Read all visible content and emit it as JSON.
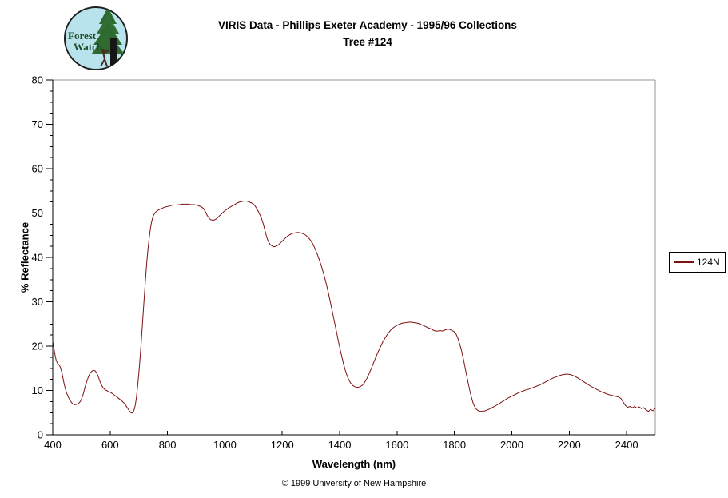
{
  "header": {
    "title_line1": "VIRIS Data - Phillips Exeter Academy - 1995/96 Collections",
    "title_line2": "Tree #124"
  },
  "logo": {
    "text_line1": "Forest",
    "text_line2": "Watch",
    "colors": {
      "circle_fill": "#b9e3ec",
      "circle_stroke": "#1f1f1f",
      "tree_green": "#2d6a30",
      "trunk": "#161616",
      "text_green": "#1d4c2a"
    }
  },
  "footer": {
    "copyright": "© 1999 University of New Hampshire"
  },
  "chart_data": {
    "type": "line",
    "title": "VIRIS Data - Phillips Exeter Academy - 1995/96 Collections",
    "subtitle": "Tree #124",
    "xlabel": "Wavelength (nm)",
    "ylabel": "% Reflectance",
    "xlim": [
      400,
      2500
    ],
    "ylim": [
      0,
      80
    ],
    "x_ticks": [
      400,
      600,
      800,
      1000,
      1200,
      1400,
      1600,
      1800,
      2000,
      2200,
      2400
    ],
    "y_ticks": [
      0,
      10,
      20,
      30,
      40,
      50,
      60,
      70,
      80
    ],
    "y_minor_tick_step": 2.5,
    "grid": false,
    "legend_position": "right",
    "axis_color": "#000000",
    "frame_color": "#949494",
    "series": [
      {
        "name": "124N",
        "color": "#7e1112",
        "points": [
          [
            400,
            21.2
          ],
          [
            404,
            19.6
          ],
          [
            408,
            18.0
          ],
          [
            412,
            16.8
          ],
          [
            416,
            16.2
          ],
          [
            420,
            15.9
          ],
          [
            424,
            15.6
          ],
          [
            428,
            15.0
          ],
          [
            432,
            14.0
          ],
          [
            436,
            12.7
          ],
          [
            440,
            11.4
          ],
          [
            444,
            10.4
          ],
          [
            448,
            9.5
          ],
          [
            452,
            8.9
          ],
          [
            456,
            8.3
          ],
          [
            460,
            7.8
          ],
          [
            464,
            7.4
          ],
          [
            468,
            7.1
          ],
          [
            472,
            6.9
          ],
          [
            476,
            6.8
          ],
          [
            480,
            6.8
          ],
          [
            484,
            6.9
          ],
          [
            488,
            7.0
          ],
          [
            492,
            7.2
          ],
          [
            496,
            7.5
          ],
          [
            500,
            8.0
          ],
          [
            504,
            8.7
          ],
          [
            508,
            9.6
          ],
          [
            512,
            10.6
          ],
          [
            516,
            11.5
          ],
          [
            520,
            12.3
          ],
          [
            524,
            13.0
          ],
          [
            528,
            13.6
          ],
          [
            532,
            14.0
          ],
          [
            536,
            14.3
          ],
          [
            540,
            14.5
          ],
          [
            544,
            14.5
          ],
          [
            548,
            14.4
          ],
          [
            552,
            14.1
          ],
          [
            556,
            13.6
          ],
          [
            560,
            12.9
          ],
          [
            564,
            12.1
          ],
          [
            568,
            11.5
          ],
          [
            572,
            11.0
          ],
          [
            576,
            10.6
          ],
          [
            580,
            10.3
          ],
          [
            584,
            10.1
          ],
          [
            588,
            10.0
          ],
          [
            592,
            9.8
          ],
          [
            596,
            9.7
          ],
          [
            600,
            9.6
          ],
          [
            608,
            9.3
          ],
          [
            616,
            8.9
          ],
          [
            624,
            8.5
          ],
          [
            632,
            8.1
          ],
          [
            640,
            7.7
          ],
          [
            648,
            7.2
          ],
          [
            654,
            6.7
          ],
          [
            660,
            6.1
          ],
          [
            666,
            5.5
          ],
          [
            672,
            5.0
          ],
          [
            676,
            4.9
          ],
          [
            680,
            5.1
          ],
          [
            684,
            5.7
          ],
          [
            688,
            6.8
          ],
          [
            692,
            8.6
          ],
          [
            696,
            11.0
          ],
          [
            700,
            13.8
          ],
          [
            704,
            17.0
          ],
          [
            708,
            20.5
          ],
          [
            712,
            24.3
          ],
          [
            716,
            28.2
          ],
          [
            720,
            32.0
          ],
          [
            724,
            35.7
          ],
          [
            728,
            39.0
          ],
          [
            732,
            41.9
          ],
          [
            736,
            44.3
          ],
          [
            740,
            46.3
          ],
          [
            744,
            47.8
          ],
          [
            748,
            48.9
          ],
          [
            752,
            49.6
          ],
          [
            756,
            50.0
          ],
          [
            760,
            50.3
          ],
          [
            766,
            50.6
          ],
          [
            772,
            50.8
          ],
          [
            778,
            51.0
          ],
          [
            786,
            51.2
          ],
          [
            794,
            51.4
          ],
          [
            802,
            51.5
          ],
          [
            812,
            51.7
          ],
          [
            822,
            51.8
          ],
          [
            832,
            51.8
          ],
          [
            842,
            51.9
          ],
          [
            852,
            52.0
          ],
          [
            862,
            52.0
          ],
          [
            872,
            52.0
          ],
          [
            882,
            51.9
          ],
          [
            892,
            51.9
          ],
          [
            902,
            51.8
          ],
          [
            910,
            51.6
          ],
          [
            918,
            51.4
          ],
          [
            926,
            51.0
          ],
          [
            932,
            50.3
          ],
          [
            938,
            49.5
          ],
          [
            944,
            48.9
          ],
          [
            950,
            48.5
          ],
          [
            956,
            48.4
          ],
          [
            962,
            48.4
          ],
          [
            968,
            48.6
          ],
          [
            974,
            48.9
          ],
          [
            980,
            49.3
          ],
          [
            988,
            49.8
          ],
          [
            996,
            50.3
          ],
          [
            1004,
            50.7
          ],
          [
            1012,
            51.1
          ],
          [
            1020,
            51.4
          ],
          [
            1028,
            51.7
          ],
          [
            1036,
            52.0
          ],
          [
            1044,
            52.3
          ],
          [
            1052,
            52.5
          ],
          [
            1060,
            52.6
          ],
          [
            1068,
            52.7
          ],
          [
            1076,
            52.7
          ],
          [
            1084,
            52.5
          ],
          [
            1092,
            52.3
          ],
          [
            1098,
            52.1
          ],
          [
            1104,
            51.7
          ],
          [
            1110,
            51.1
          ],
          [
            1116,
            50.4
          ],
          [
            1122,
            49.6
          ],
          [
            1128,
            48.7
          ],
          [
            1134,
            47.5
          ],
          [
            1140,
            46.0
          ],
          [
            1146,
            44.5
          ],
          [
            1152,
            43.5
          ],
          [
            1158,
            42.9
          ],
          [
            1164,
            42.6
          ],
          [
            1170,
            42.4
          ],
          [
            1178,
            42.5
          ],
          [
            1186,
            42.8
          ],
          [
            1194,
            43.3
          ],
          [
            1202,
            43.8
          ],
          [
            1210,
            44.3
          ],
          [
            1218,
            44.8
          ],
          [
            1226,
            45.1
          ],
          [
            1234,
            45.4
          ],
          [
            1242,
            45.5
          ],
          [
            1250,
            45.6
          ],
          [
            1258,
            45.6
          ],
          [
            1266,
            45.5
          ],
          [
            1274,
            45.3
          ],
          [
            1282,
            45.0
          ],
          [
            1290,
            44.5
          ],
          [
            1298,
            43.9
          ],
          [
            1306,
            43.1
          ],
          [
            1314,
            42.0
          ],
          [
            1322,
            40.7
          ],
          [
            1330,
            39.3
          ],
          [
            1338,
            37.7
          ],
          [
            1346,
            35.9
          ],
          [
            1354,
            33.9
          ],
          [
            1360,
            32.2
          ],
          [
            1366,
            30.4
          ],
          [
            1372,
            28.6
          ],
          [
            1378,
            26.7
          ],
          [
            1384,
            24.8
          ],
          [
            1390,
            22.9
          ],
          [
            1396,
            21.0
          ],
          [
            1402,
            19.2
          ],
          [
            1408,
            17.5
          ],
          [
            1414,
            15.9
          ],
          [
            1420,
            14.5
          ],
          [
            1426,
            13.3
          ],
          [
            1432,
            12.4
          ],
          [
            1438,
            11.7
          ],
          [
            1446,
            11.1
          ],
          [
            1454,
            10.8
          ],
          [
            1462,
            10.7
          ],
          [
            1470,
            10.8
          ],
          [
            1478,
            11.1
          ],
          [
            1486,
            11.7
          ],
          [
            1494,
            12.6
          ],
          [
            1502,
            13.7
          ],
          [
            1510,
            14.9
          ],
          [
            1518,
            16.2
          ],
          [
            1526,
            17.5
          ],
          [
            1534,
            18.7
          ],
          [
            1542,
            19.8
          ],
          [
            1550,
            20.9
          ],
          [
            1558,
            21.8
          ],
          [
            1566,
            22.6
          ],
          [
            1574,
            23.3
          ],
          [
            1582,
            23.9
          ],
          [
            1590,
            24.3
          ],
          [
            1600,
            24.7
          ],
          [
            1610,
            25.0
          ],
          [
            1620,
            25.2
          ],
          [
            1630,
            25.3
          ],
          [
            1640,
            25.4
          ],
          [
            1650,
            25.4
          ],
          [
            1660,
            25.3
          ],
          [
            1670,
            25.2
          ],
          [
            1680,
            25.0
          ],
          [
            1690,
            24.7
          ],
          [
            1700,
            24.4
          ],
          [
            1710,
            24.1
          ],
          [
            1718,
            23.9
          ],
          [
            1726,
            23.6
          ],
          [
            1734,
            23.4
          ],
          [
            1742,
            23.4
          ],
          [
            1750,
            23.5
          ],
          [
            1758,
            23.4
          ],
          [
            1766,
            23.6
          ],
          [
            1774,
            23.8
          ],
          [
            1782,
            23.8
          ],
          [
            1790,
            23.6
          ],
          [
            1798,
            23.3
          ],
          [
            1806,
            22.7
          ],
          [
            1812,
            21.8
          ],
          [
            1818,
            20.6
          ],
          [
            1824,
            19.2
          ],
          [
            1830,
            17.5
          ],
          [
            1836,
            15.6
          ],
          [
            1842,
            13.6
          ],
          [
            1848,
            11.7
          ],
          [
            1854,
            9.9
          ],
          [
            1860,
            8.3
          ],
          [
            1866,
            7.0
          ],
          [
            1872,
            6.2
          ],
          [
            1878,
            5.7
          ],
          [
            1884,
            5.4
          ],
          [
            1890,
            5.3
          ],
          [
            1898,
            5.3
          ],
          [
            1906,
            5.4
          ],
          [
            1914,
            5.6
          ],
          [
            1922,
            5.8
          ],
          [
            1930,
            6.1
          ],
          [
            1940,
            6.4
          ],
          [
            1950,
            6.8
          ],
          [
            1960,
            7.2
          ],
          [
            1970,
            7.6
          ],
          [
            1980,
            8.0
          ],
          [
            1990,
            8.4
          ],
          [
            2000,
            8.7
          ],
          [
            2012,
            9.1
          ],
          [
            2024,
            9.5
          ],
          [
            2036,
            9.8
          ],
          [
            2048,
            10.1
          ],
          [
            2060,
            10.3
          ],
          [
            2072,
            10.6
          ],
          [
            2084,
            10.9
          ],
          [
            2096,
            11.2
          ],
          [
            2108,
            11.6
          ],
          [
            2120,
            12.0
          ],
          [
            2132,
            12.4
          ],
          [
            2144,
            12.8
          ],
          [
            2156,
            13.1
          ],
          [
            2168,
            13.4
          ],
          [
            2180,
            13.6
          ],
          [
            2192,
            13.7
          ],
          [
            2204,
            13.6
          ],
          [
            2216,
            13.3
          ],
          [
            2228,
            12.9
          ],
          [
            2240,
            12.4
          ],
          [
            2252,
            11.9
          ],
          [
            2264,
            11.4
          ],
          [
            2276,
            10.9
          ],
          [
            2288,
            10.5
          ],
          [
            2300,
            10.1
          ],
          [
            2312,
            9.7
          ],
          [
            2324,
            9.4
          ],
          [
            2336,
            9.1
          ],
          [
            2348,
            8.9
          ],
          [
            2360,
            8.7
          ],
          [
            2372,
            8.5
          ],
          [
            2380,
            8.2
          ],
          [
            2388,
            7.4
          ],
          [
            2396,
            6.6
          ],
          [
            2404,
            6.2
          ],
          [
            2412,
            6.4
          ],
          [
            2420,
            6.1
          ],
          [
            2428,
            6.4
          ],
          [
            2436,
            6.0
          ],
          [
            2444,
            6.3
          ],
          [
            2452,
            5.9
          ],
          [
            2460,
            6.1
          ],
          [
            2468,
            5.6
          ],
          [
            2476,
            5.3
          ],
          [
            2484,
            5.7
          ],
          [
            2492,
            5.4
          ],
          [
            2500,
            6.0
          ]
        ]
      }
    ]
  }
}
